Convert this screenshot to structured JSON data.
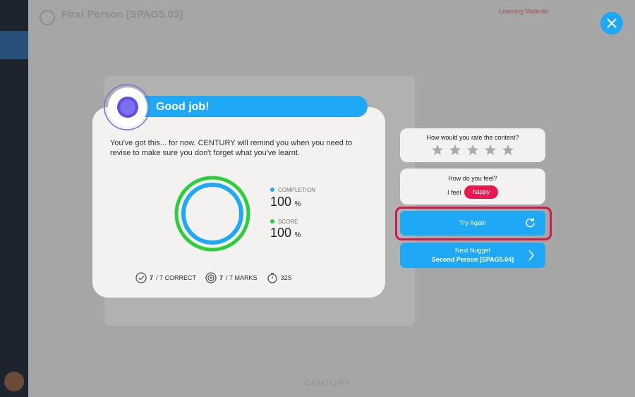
{
  "background": {
    "lesson_title": "First Person [SPAG5.03]",
    "side_heading": "Learning Material",
    "brand": "CENTURY"
  },
  "modal": {
    "title": "Good job!",
    "message": "You've got this... for now. CENTURY will remind you when you need to revise to make sure you don't forget what you've learnt.",
    "completion": {
      "label": "COMPLETION",
      "value": 100,
      "unit": "%"
    },
    "score": {
      "label": "SCORE",
      "value": 100,
      "unit": "%"
    },
    "stats": {
      "correct_count": "7",
      "correct_rest": "/ 7 CORRECT",
      "marks_count": "7",
      "marks_rest": "/ 7 MARKS",
      "time": "32S"
    }
  },
  "panel": {
    "rate_question": "How would you rate the content?",
    "feel_question": "How do you feel?",
    "feel_prefix": "I feel",
    "feel_value": "happy",
    "try_again": "Try Again",
    "next_label": "Next Nugget",
    "next_title": "Second Person [SPAG5.04]"
  }
}
